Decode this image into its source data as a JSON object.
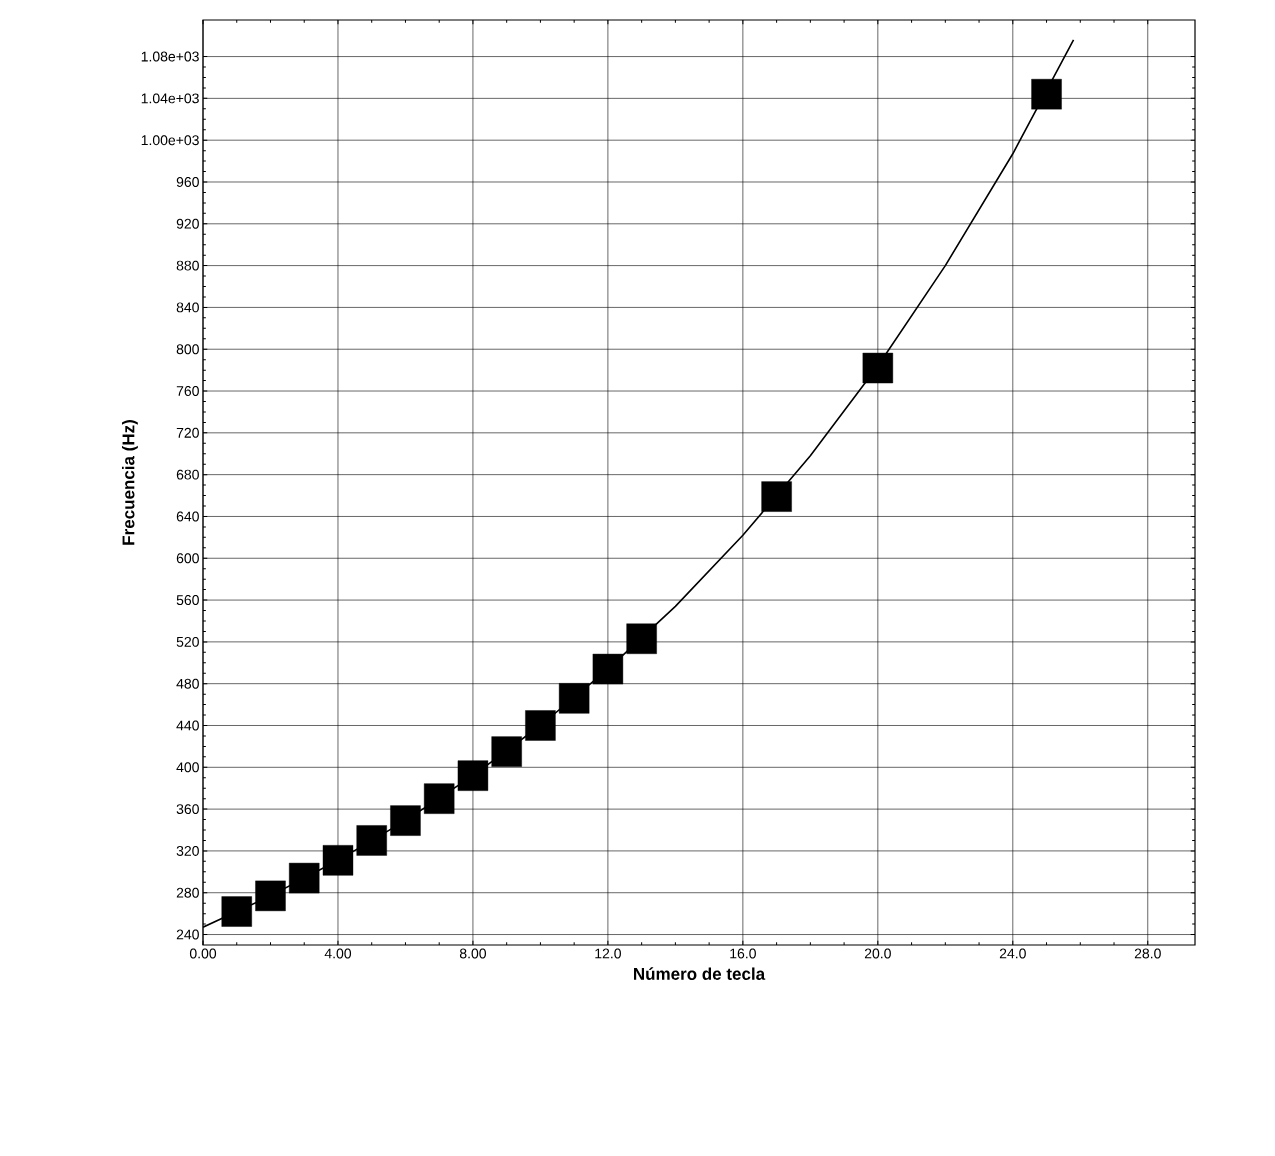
{
  "chart_data": {
    "type": "scatter",
    "xlabel": "Número de tecla",
    "ylabel": "Frecuencia (Hz)",
    "xlim": [
      0,
      29.4
    ],
    "ylim": [
      230,
      1115
    ],
    "xticks": [
      {
        "value": 0,
        "label": "0.00"
      },
      {
        "value": 4,
        "label": "4.00"
      },
      {
        "value": 8,
        "label": "8.00"
      },
      {
        "value": 12,
        "label": "12.0"
      },
      {
        "value": 16,
        "label": "16.0"
      },
      {
        "value": 20,
        "label": "20.0"
      },
      {
        "value": 24,
        "label": "24.0"
      },
      {
        "value": 28,
        "label": "28.0"
      }
    ],
    "yticks": [
      240,
      280,
      320,
      360,
      400,
      440,
      480,
      520,
      560,
      600,
      640,
      680,
      720,
      760,
      800,
      840,
      880,
      920,
      960,
      {
        "value": 1000,
        "label": "1.00e+03"
      },
      {
        "value": 1040,
        "label": "1.04e+03"
      },
      {
        "value": 1080,
        "label": "1.08e+03"
      }
    ],
    "grid": true,
    "series": [
      {
        "type": "line",
        "color": "#000000",
        "marker": "none",
        "line_style": "solid",
        "x": [
          0,
          2,
          4,
          6,
          8,
          10,
          12,
          14,
          16,
          18,
          20,
          22,
          24,
          25.8
        ],
        "values": [
          247,
          277,
          311,
          349,
          392,
          440,
          494,
          554,
          622,
          698,
          784,
          880,
          987,
          1096
        ]
      },
      {
        "color": "#000000",
        "marker": "square",
        "x": [
          1,
          2,
          3,
          4,
          5,
          6,
          7,
          8,
          9,
          10,
          11,
          12,
          13,
          17,
          20,
          25
        ],
        "values": [
          262,
          277,
          294,
          311,
          330,
          349,
          370,
          392,
          415,
          440,
          466,
          494,
          523,
          659,
          782,
          1044
        ]
      }
    ]
  }
}
